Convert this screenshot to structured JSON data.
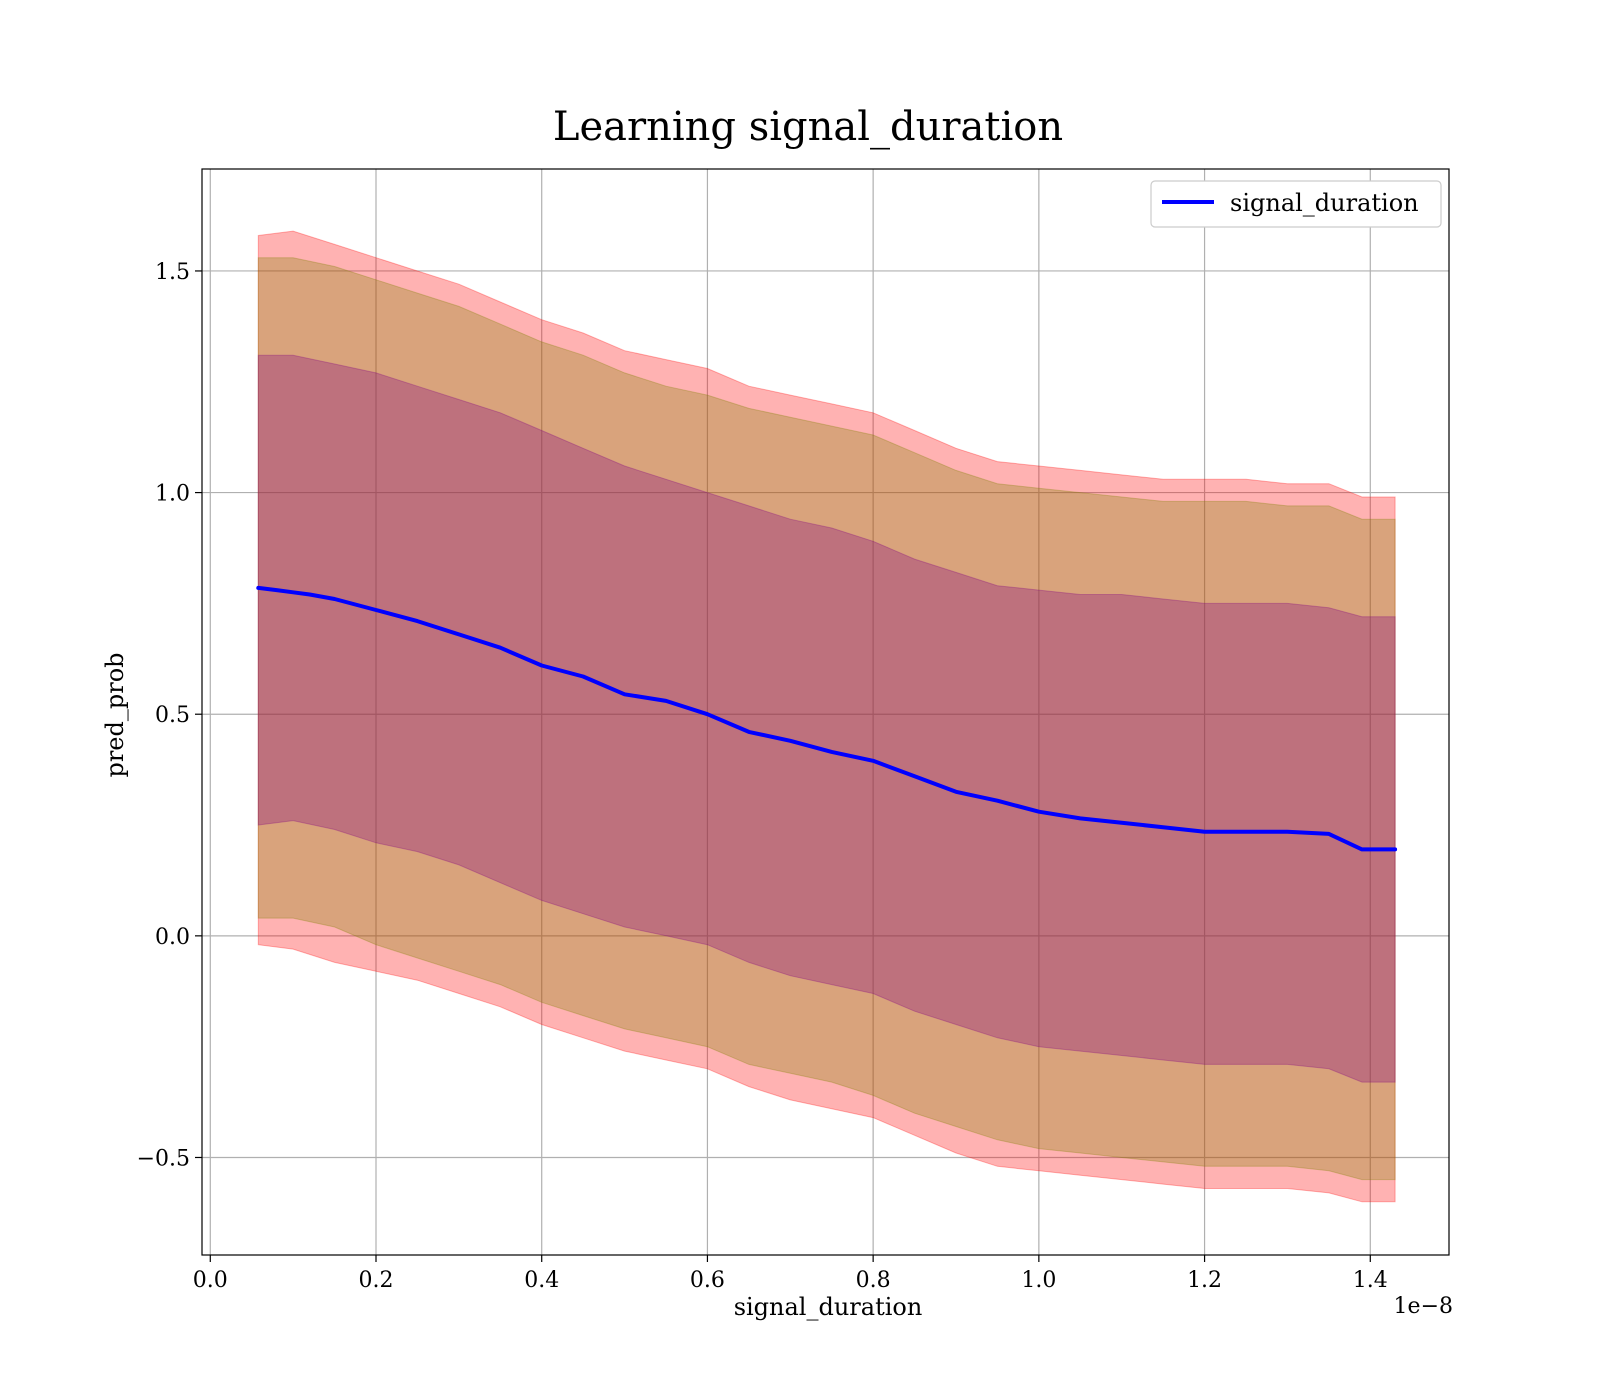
{
  "chart_data": {
    "type": "line",
    "title": "Learning signal_duration",
    "xlabel": "signal_duration",
    "ylabel": "pred_prob",
    "x_offset_label": "1e−8",
    "xlim": [
      -0.01,
      1.495
    ],
    "ylim": [
      -0.72,
      1.73
    ],
    "x_ticks": [
      {
        "value": 0.0,
        "label": "0.0"
      },
      {
        "value": 0.2,
        "label": "0.2"
      },
      {
        "value": 0.4,
        "label": "0.4"
      },
      {
        "value": 0.6,
        "label": "0.6"
      },
      {
        "value": 0.8,
        "label": "0.8"
      },
      {
        "value": 1.0,
        "label": "1.0"
      },
      {
        "value": 1.2,
        "label": "1.2"
      },
      {
        "value": 1.4,
        "label": "1.4"
      }
    ],
    "y_ticks": [
      {
        "value": -0.5,
        "label": "−0.5"
      },
      {
        "value": 0.0,
        "label": "0.0"
      },
      {
        "value": 0.5,
        "label": "0.5"
      },
      {
        "value": 1.0,
        "label": "1.0"
      },
      {
        "value": 1.5,
        "label": "1.5"
      }
    ],
    "grid": true,
    "legend_position": "top-right",
    "series": [
      {
        "name": "signal_duration",
        "color": "#0000ff",
        "x": [
          0.058,
          0.08,
          0.1,
          0.12,
          0.15,
          0.2,
          0.25,
          0.3,
          0.35,
          0.4,
          0.45,
          0.5,
          0.55,
          0.6,
          0.65,
          0.7,
          0.75,
          0.8,
          0.85,
          0.9,
          0.95,
          1.0,
          1.05,
          1.1,
          1.15,
          1.2,
          1.25,
          1.3,
          1.35,
          1.39,
          1.43
        ],
        "y": [
          0.785,
          0.78,
          0.775,
          0.77,
          0.76,
          0.735,
          0.71,
          0.68,
          0.65,
          0.61,
          0.585,
          0.545,
          0.53,
          0.5,
          0.46,
          0.44,
          0.415,
          0.395,
          0.36,
          0.325,
          0.305,
          0.28,
          0.265,
          0.255,
          0.245,
          0.235,
          0.235,
          0.235,
          0.23,
          0.195,
          0.195
        ]
      }
    ],
    "bands": [
      {
        "color": "#ff0000",
        "opacity": 0.3,
        "x": [
          0.058,
          0.1,
          0.15,
          0.2,
          0.25,
          0.3,
          0.35,
          0.4,
          0.45,
          0.5,
          0.55,
          0.6,
          0.65,
          0.7,
          0.75,
          0.8,
          0.85,
          0.9,
          0.95,
          1.0,
          1.05,
          1.1,
          1.15,
          1.2,
          1.25,
          1.3,
          1.35,
          1.39,
          1.43
        ],
        "upper": [
          1.58,
          1.59,
          1.56,
          1.53,
          1.5,
          1.47,
          1.43,
          1.39,
          1.36,
          1.32,
          1.3,
          1.28,
          1.24,
          1.22,
          1.2,
          1.18,
          1.14,
          1.1,
          1.07,
          1.06,
          1.05,
          1.04,
          1.03,
          1.03,
          1.03,
          1.02,
          1.02,
          0.99,
          0.99
        ],
        "lower": [
          -0.02,
          -0.03,
          -0.06,
          -0.08,
          -0.1,
          -0.13,
          -0.16,
          -0.2,
          -0.23,
          -0.26,
          -0.28,
          -0.3,
          -0.34,
          -0.37,
          -0.39,
          -0.41,
          -0.45,
          -0.49,
          -0.52,
          -0.53,
          -0.54,
          -0.55,
          -0.56,
          -0.57,
          -0.57,
          -0.57,
          -0.58,
          -0.6,
          -0.6
        ]
      },
      {
        "color": "#808000",
        "opacity": 0.3,
        "x": [
          0.058,
          0.1,
          0.15,
          0.2,
          0.25,
          0.3,
          0.35,
          0.4,
          0.45,
          0.5,
          0.55,
          0.6,
          0.65,
          0.7,
          0.75,
          0.8,
          0.85,
          0.9,
          0.95,
          1.0,
          1.05,
          1.1,
          1.15,
          1.2,
          1.25,
          1.3,
          1.35,
          1.39,
          1.43
        ],
        "upper": [
          1.53,
          1.53,
          1.51,
          1.48,
          1.45,
          1.42,
          1.38,
          1.34,
          1.31,
          1.27,
          1.24,
          1.22,
          1.19,
          1.17,
          1.15,
          1.13,
          1.09,
          1.05,
          1.02,
          1.01,
          1.0,
          0.99,
          0.98,
          0.98,
          0.98,
          0.97,
          0.97,
          0.94,
          0.94
        ],
        "lower": [
          0.04,
          0.04,
          0.02,
          -0.02,
          -0.05,
          -0.08,
          -0.11,
          -0.15,
          -0.18,
          -0.21,
          -0.23,
          -0.25,
          -0.29,
          -0.31,
          -0.33,
          -0.36,
          -0.4,
          -0.43,
          -0.46,
          -0.48,
          -0.49,
          -0.5,
          -0.51,
          -0.52,
          -0.52,
          -0.52,
          -0.53,
          -0.55,
          -0.55
        ]
      },
      {
        "color": "#800080",
        "opacity": 0.3,
        "x": [
          0.058,
          0.1,
          0.15,
          0.2,
          0.25,
          0.3,
          0.35,
          0.4,
          0.45,
          0.5,
          0.55,
          0.6,
          0.65,
          0.7,
          0.75,
          0.8,
          0.85,
          0.9,
          0.95,
          1.0,
          1.05,
          1.1,
          1.15,
          1.2,
          1.25,
          1.3,
          1.35,
          1.39,
          1.43
        ],
        "upper": [
          1.31,
          1.31,
          1.29,
          1.27,
          1.24,
          1.21,
          1.18,
          1.14,
          1.1,
          1.06,
          1.03,
          1.0,
          0.97,
          0.94,
          0.92,
          0.89,
          0.85,
          0.82,
          0.79,
          0.78,
          0.77,
          0.77,
          0.76,
          0.75,
          0.75,
          0.75,
          0.74,
          0.72,
          0.72
        ],
        "lower": [
          0.25,
          0.26,
          0.24,
          0.21,
          0.19,
          0.16,
          0.12,
          0.08,
          0.05,
          0.02,
          0.0,
          -0.02,
          -0.06,
          -0.09,
          -0.11,
          -0.13,
          -0.17,
          -0.2,
          -0.23,
          -0.25,
          -0.26,
          -0.27,
          -0.28,
          -0.29,
          -0.29,
          -0.29,
          -0.3,
          -0.33,
          -0.33
        ]
      }
    ]
  }
}
